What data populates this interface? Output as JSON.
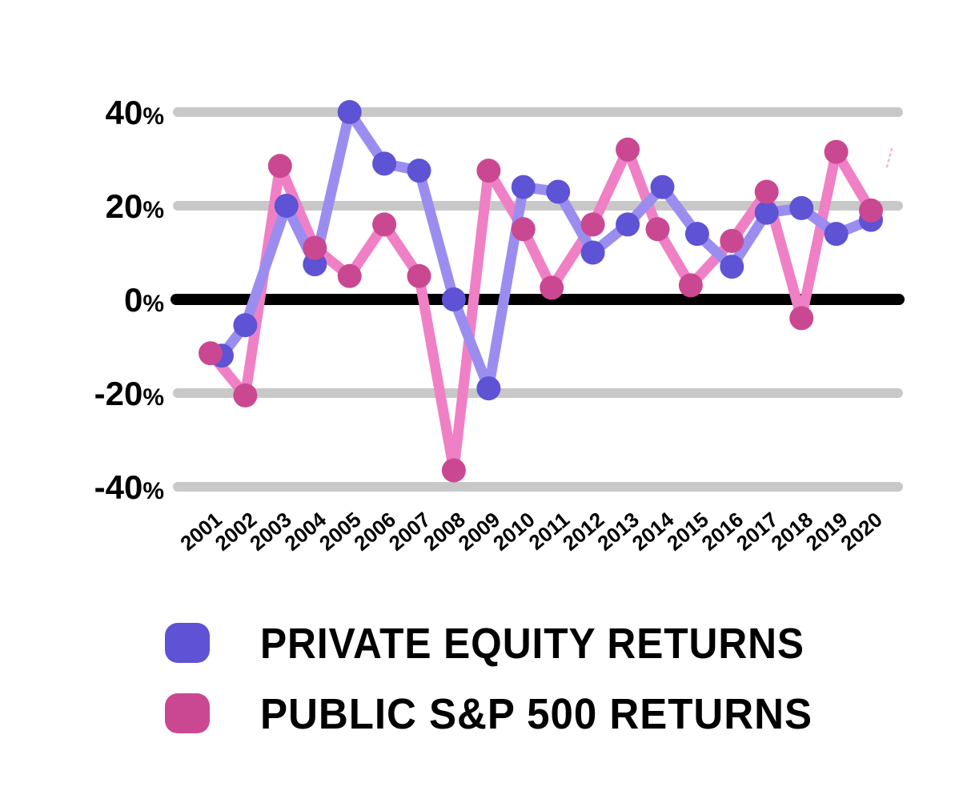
{
  "page": {
    "title": "",
    "background": "#ffffff"
  },
  "chart_data": {
    "type": "line",
    "title": "",
    "xlabel": "",
    "ylabel": "",
    "x": [
      "2001",
      "2002",
      "2003",
      "2004",
      "2005",
      "2006",
      "2007",
      "2008",
      "2009",
      "2010",
      "2011",
      "2012",
      "2013",
      "2014",
      "2015",
      "2016",
      "2017",
      "2018",
      "2019",
      "2020"
    ],
    "ylim": [
      -45,
      45
    ],
    "yticks": [
      {
        "value": 40,
        "label": "40%"
      },
      {
        "value": 20,
        "label": "20%"
      },
      {
        "value": 0,
        "label": "0%"
      },
      {
        "value": -20,
        "label": "-20%"
      },
      {
        "value": -40,
        "label": "-40%"
      }
    ],
    "grid": {
      "horizontal": true,
      "vertical": false,
      "zero_line_emphasized": true
    },
    "legend_position": "bottom-left",
    "series": [
      {
        "name": "PRIVATE EQUITY RETURNS",
        "line_color": "#9b8df0",
        "marker_color": "#5d53d4",
        "values": [
          -12,
          -5.5,
          20,
          7.5,
          40,
          29,
          27.5,
          0,
          -19,
          24,
          23,
          10,
          16,
          24,
          14,
          7,
          18.5,
          19.5,
          14,
          17
        ]
      },
      {
        "name": "PUBLIC S&P 500 RETURNS",
        "line_color": "#f080c5",
        "marker_color": "#ca4892",
        "values": [
          -11.5,
          -20.5,
          28.5,
          11,
          5,
          16,
          5,
          -36.5,
          27.5,
          15,
          2.5,
          16,
          32,
          15,
          3,
          12.5,
          23,
          -4,
          31.5,
          19
        ]
      }
    ],
    "colors": {
      "gridline": "#c8c8c8",
      "zero_line": "#000000",
      "tick_text": "#000000",
      "background": "#ffffff"
    }
  }
}
